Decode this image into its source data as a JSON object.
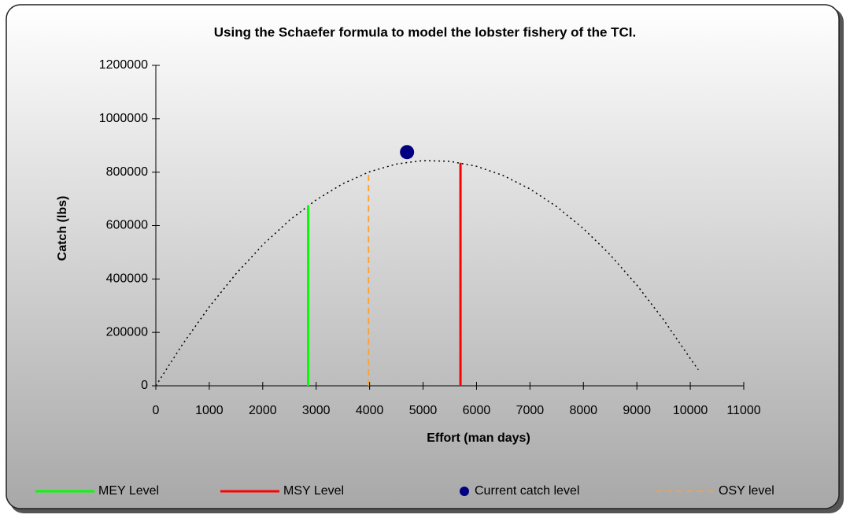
{
  "chart_data": {
    "type": "line",
    "title": "Using the Schaefer formula to model the lobster fishery of the TCI.",
    "xlabel": "Effort (man days)",
    "ylabel": "Catch (lbs)",
    "xlim": [
      0,
      11000
    ],
    "xticks": [
      0,
      1000,
      2000,
      3000,
      4000,
      5000,
      6000,
      7000,
      8000,
      9000,
      10000,
      11000
    ],
    "ylim": [
      0,
      1200000
    ],
    "yticks": [
      0,
      200000,
      400000,
      600000,
      800000,
      1000000,
      1200000
    ],
    "series": [
      {
        "color": "#000000",
        "style": "dotted",
        "x": [
          0,
          500,
          1000,
          1500,
          2000,
          2500,
          3000,
          3500,
          4000,
          4500,
          5000,
          5500,
          6000,
          6500,
          7000,
          7500,
          8000,
          8500,
          9000,
          9500,
          10000,
          10150
        ],
        "values": [
          0,
          155700,
          295500,
          419500,
          527600,
          619900,
          696300,
          756900,
          801600,
          830500,
          843500,
          840700,
          822000,
          787500,
          737100,
          670900,
          588800,
          490900,
          377100,
          247500,
          102000,
          60000
        ]
      },
      {
        "name": "MEY Level",
        "color": "#00ff00",
        "style": "solid",
        "x": [
          2850,
          2850
        ],
        "values": [
          0,
          675000
        ]
      },
      {
        "name": "MSY Level",
        "color": "#ff0000",
        "style": "solid",
        "x": [
          5700,
          5700
        ],
        "values": [
          0,
          835000
        ]
      },
      {
        "name": "Current catch level",
        "color": "#000080",
        "style": "marker",
        "x": [
          4700
        ],
        "values": [
          875000
        ]
      },
      {
        "name": "OSY level",
        "color": "#ffa030",
        "style": "dashed",
        "x": [
          3980,
          3980
        ],
        "values": [
          0,
          800000
        ]
      }
    ]
  }
}
